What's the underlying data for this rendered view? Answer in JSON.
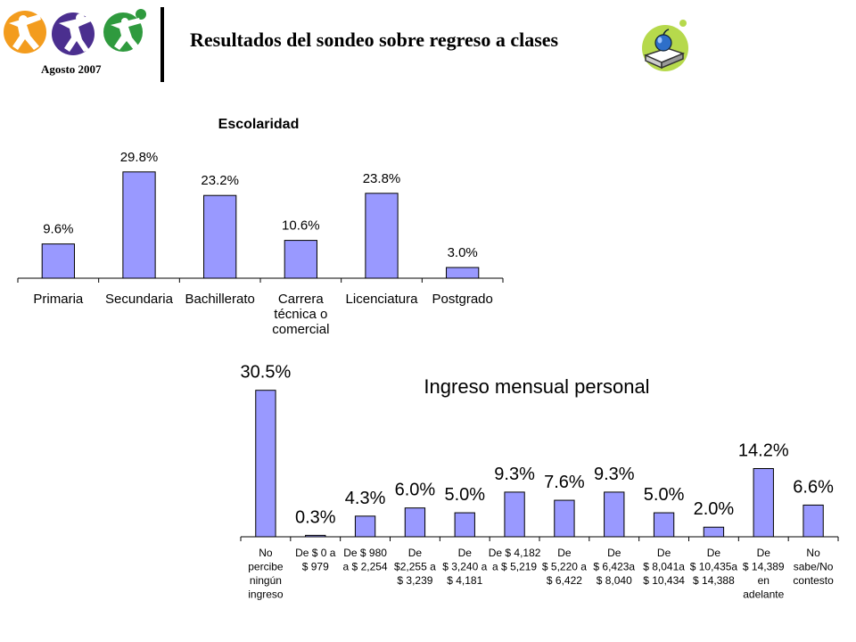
{
  "header": {
    "title": "Resultados del sondeo sobre regreso a clases",
    "date": "Agosto 2007"
  },
  "colors": {
    "bar_fill": "#9999ff",
    "bar_stroke": "#000000",
    "logo_orange": "#f39c1e",
    "logo_purple": "#4b2f8f",
    "logo_green": "#2f9a3e",
    "book_green": "#b6d94c"
  },
  "icons": [
    "logo-figure-orange-icon",
    "logo-figure-purple-icon",
    "logo-figure-green-icon",
    "book-apple-icon"
  ],
  "chart_data": [
    {
      "type": "bar",
      "title": "Escolaridad",
      "categories": [
        "Primaria",
        "Secundaria",
        "Bachillerato",
        "Carrera técnica o comercial",
        "Licenciatura",
        "Postgrado"
      ],
      "category_lines": [
        [
          "Primaria"
        ],
        [
          "Secundaria"
        ],
        [
          "Bachillerato"
        ],
        [
          "Carrera",
          "técnica o",
          "comercial"
        ],
        [
          "Licenciatura"
        ],
        [
          "Postgrado"
        ]
      ],
      "values": [
        9.6,
        29.8,
        23.2,
        10.6,
        23.8,
        3.0
      ],
      "labels": [
        "9.6%",
        "29.8%",
        "23.2%",
        "10.6%",
        "23.8%",
        "3.0%"
      ],
      "ylim": [
        0,
        30
      ],
      "grid": false,
      "legend": "none"
    },
    {
      "type": "bar",
      "title": "Ingreso mensual personal",
      "categories": [
        "No percibe ningún ingreso",
        "De $ 0 a $ 979",
        "De $ 980 a $ 2,254",
        "De $2,255 a $ 3,239",
        "De $ 3,240 a $ 4,181",
        "De $ 4,182 a $ 5,219",
        "De $ 5,220 a $ 6,422",
        "De $ 6,423 a $ 8,040",
        "De $ 8,041 a $ 10,434",
        "De $ 10,435 a $ 14,388",
        "De $ 14,389 en adelante",
        "No sabe/No contesto"
      ],
      "category_lines": [
        [
          "No",
          "percibe",
          "ningún",
          "ingreso"
        ],
        [
          "De $ 0 a",
          "$ 979"
        ],
        [
          "De $ 980",
          "a $ 2,254"
        ],
        [
          "De",
          "$2,255 a",
          "$ 3,239"
        ],
        [
          "De",
          "$ 3,240 a",
          "$ 4,181"
        ],
        [
          "De $ 4,182",
          "a $ 5,219"
        ],
        [
          "De",
          "$ 5,220 a",
          "$ 6,422"
        ],
        [
          "De",
          "$ 6,423a",
          "$ 8,040"
        ],
        [
          "De",
          "$ 8,041a",
          "$ 10,434"
        ],
        [
          "De",
          "$ 10,435a",
          "$ 14,388"
        ],
        [
          "De",
          "$ 14,389",
          "en",
          "adelante"
        ],
        [
          "No",
          "sabe/No",
          "contesto"
        ]
      ],
      "values": [
        30.5,
        0.3,
        4.3,
        6.0,
        5.0,
        9.3,
        7.6,
        9.3,
        5.0,
        2.0,
        14.2,
        6.6
      ],
      "labels": [
        "30.5%",
        "0.3%",
        "4.3%",
        "6.0%",
        "5.0%",
        "9.3%",
        "7.6%",
        "9.3%",
        "5.0%",
        "2.0%",
        "14.2%",
        "6.6%"
      ],
      "ylim": [
        0,
        31
      ],
      "grid": false,
      "legend": "none"
    }
  ]
}
